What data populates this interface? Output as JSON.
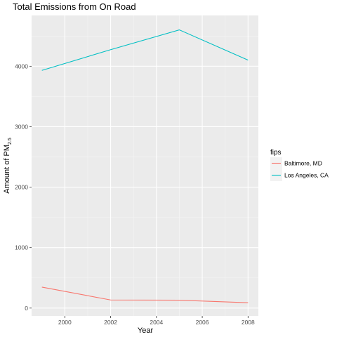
{
  "chart_data": {
    "type": "line",
    "title": "Total Emissions from On Road",
    "xlabel": "Year",
    "ylabel": "Amount of PM",
    "ylabel_subscript": "2.5",
    "x": [
      1999,
      2002,
      2005,
      2008
    ],
    "x_ticks": [
      2000,
      2002,
      2004,
      2006,
      2008
    ],
    "y_ticks": [
      0,
      1000,
      2000,
      3000,
      4000
    ],
    "xlim": [
      1998.55,
      2008.45
    ],
    "ylim": [
      -130,
      4840
    ],
    "grid": true,
    "legend_title": "fips",
    "legend_position": "right",
    "series": [
      {
        "name": "Baltimore, MD",
        "color": "#F8766D",
        "values": [
          346.8,
          134.3,
          130.4,
          88.3
        ]
      },
      {
        "name": "Los Angeles, CA",
        "color": "#00BFC4",
        "values": [
          3931.1,
          4274.0,
          4601.4,
          4101.3
        ]
      }
    ]
  }
}
